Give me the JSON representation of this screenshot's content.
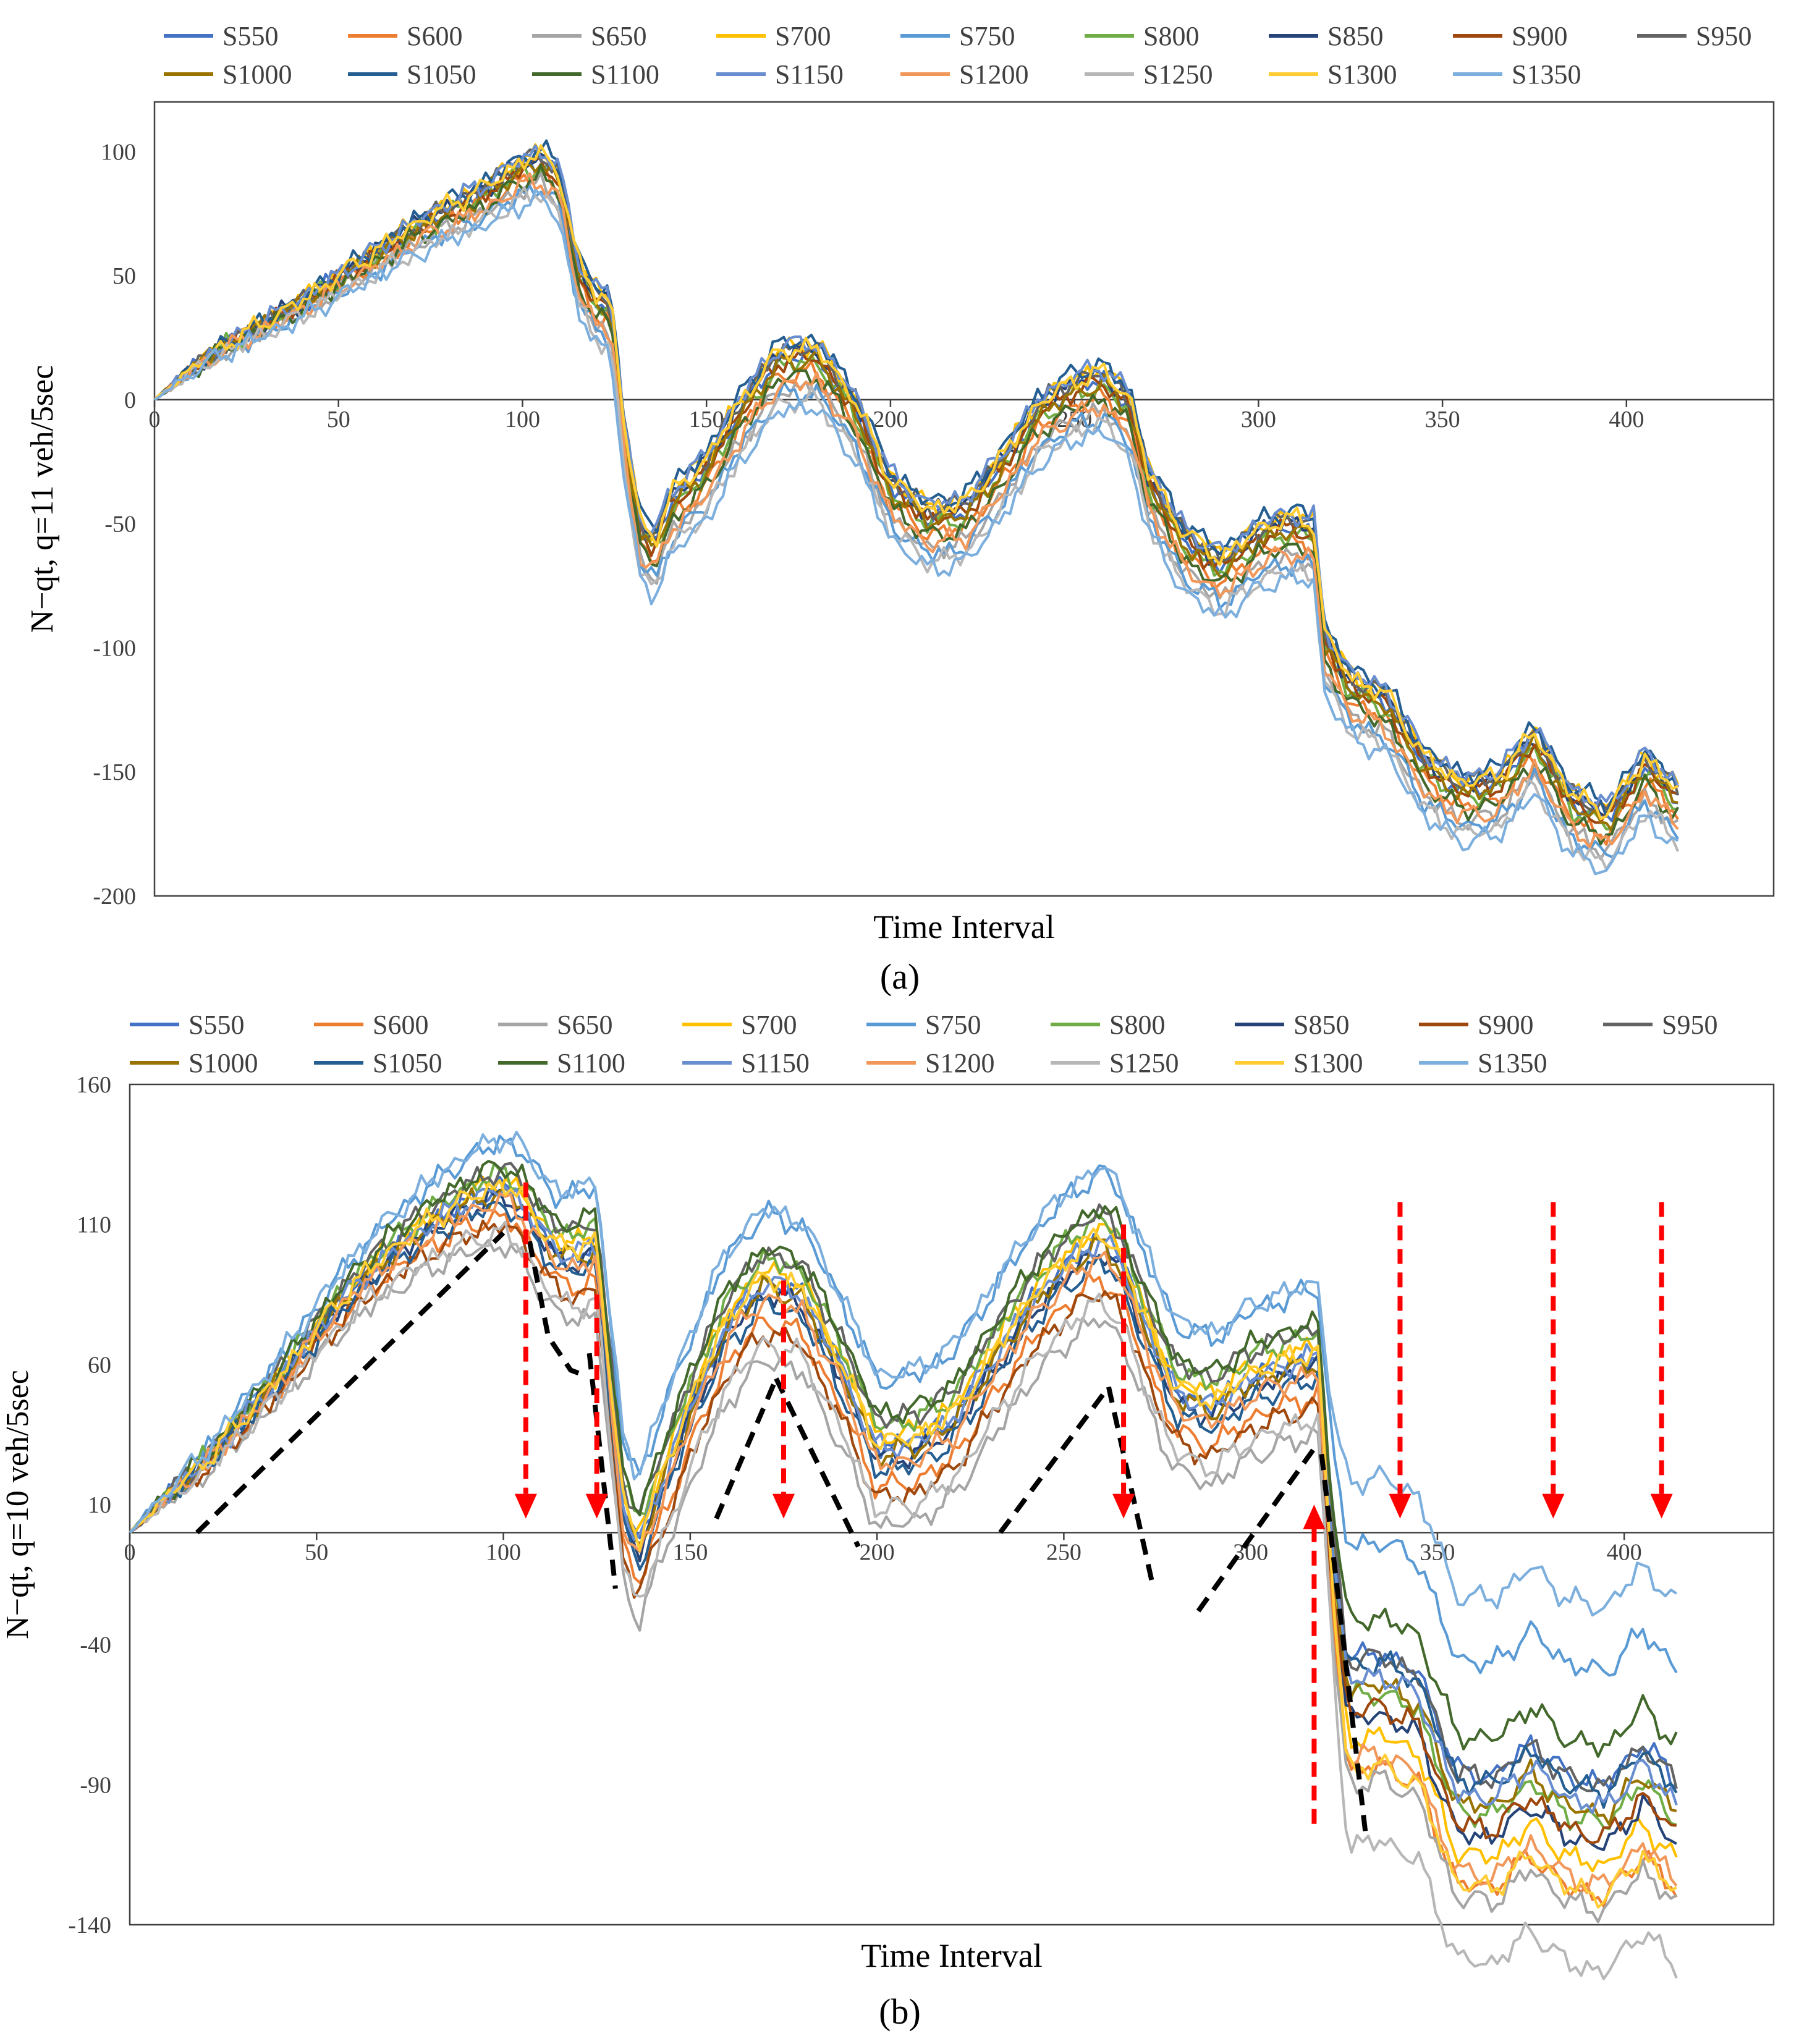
{
  "figure_labels": [
    "(a)",
    "(b)"
  ],
  "chart_data": [
    {
      "type": "line",
      "panel_label": "(a)",
      "title": "",
      "xlabel": "Time Interval",
      "ylabel": "N−qt, q=11 veh/5sec",
      "xlim": [
        0,
        440
      ],
      "ylim": [
        -200,
        120
      ],
      "xticks": [
        0,
        50,
        100,
        150,
        200,
        250,
        300,
        350,
        400
      ],
      "yticks": [
        100,
        50,
        0,
        -50,
        -100,
        -150,
        -200
      ],
      "legend_position": "top",
      "series_names": [
        "S550",
        "S600",
        "S650",
        "S700",
        "S750",
        "S800",
        "S850",
        "S900",
        "S950",
        "S1000",
        "S1050",
        "S1100",
        "S1150",
        "S1200",
        "S1250",
        "S1300",
        "S1350"
      ],
      "colors": [
        "#4472C4",
        "#ED7D31",
        "#A5A5A5",
        "#FFC000",
        "#5B9BD5",
        "#70AD47",
        "#264478",
        "#9E480E",
        "#636363",
        "#997300",
        "#255E91",
        "#43682B",
        "#698ED0",
        "#F1975A",
        "#B7B7B7",
        "#FFCD33",
        "#7CAFDD"
      ],
      "x": [
        0,
        10,
        20,
        30,
        40,
        50,
        60,
        70,
        80,
        90,
        100,
        105,
        110,
        115,
        120,
        124,
        128,
        132,
        136,
        140,
        150,
        160,
        170,
        180,
        190,
        200,
        210,
        220,
        230,
        240,
        250,
        258,
        265,
        270,
        280,
        290,
        300,
        305,
        310,
        315,
        318,
        325,
        335,
        345,
        355,
        365,
        375,
        385,
        395,
        405,
        415
      ],
      "base": [
        0,
        12,
        22,
        30,
        38,
        48,
        57,
        67,
        75,
        82,
        92,
        94,
        88,
        50,
        38,
        35,
        -20,
        -55,
        -62,
        -45,
        -30,
        -5,
        14,
        15,
        -5,
        -38,
        -50,
        -48,
        -30,
        -8,
        2,
        5,
        -5,
        -35,
        -60,
        -70,
        -58,
        -55,
        -54,
        -56,
        -100,
        -118,
        -125,
        -150,
        -160,
        -158,
        -140,
        -165,
        -172,
        -150,
        -165
      ],
      "offsets": [
        3,
        -4,
        -10,
        7,
        -12,
        0,
        5,
        2,
        6,
        1,
        9,
        -5,
        8,
        -8,
        -15,
        6,
        -18
      ],
      "series_note": "Each series = base + offset (veh), offset scaled to 0 at x=0 and full by x=140; values estimated from gridlines."
    },
    {
      "type": "line",
      "panel_label": "(b)",
      "title": "",
      "xlabel": "Time Interval",
      "ylabel": "N−qt, q=10 veh/5sec",
      "xlim": [
        0,
        440
      ],
      "ylim": [
        -140,
        160
      ],
      "xticks": [
        0,
        50,
        100,
        150,
        200,
        250,
        300,
        350,
        400
      ],
      "yticks": [
        160,
        110,
        60,
        10,
        -40,
        -90,
        -140
      ],
      "legend_position": "top",
      "series_names": [
        "S550",
        "S600",
        "S650",
        "S700",
        "S750",
        "S800",
        "S850",
        "S900",
        "S950",
        "S1000",
        "S1050",
        "S1100",
        "S1150",
        "S1200",
        "S1250",
        "S1300",
        "S1350"
      ],
      "colors": [
        "#4472C4",
        "#ED7D31",
        "#A5A5A5",
        "#FFC000",
        "#5B9BD5",
        "#70AD47",
        "#264478",
        "#9E480E",
        "#636363",
        "#997300",
        "#255E91",
        "#43682B",
        "#698ED0",
        "#F1975A",
        "#B7B7B7",
        "#FFCD33",
        "#7CAFDD"
      ],
      "x": [
        0,
        10,
        20,
        30,
        40,
        50,
        60,
        70,
        80,
        90,
        100,
        105,
        110,
        115,
        120,
        125,
        128,
        132,
        136,
        140,
        150,
        160,
        170,
        180,
        190,
        200,
        210,
        220,
        230,
        240,
        250,
        260,
        265,
        270,
        280,
        290,
        300,
        310,
        318,
        322,
        326,
        335,
        345,
        355,
        365,
        375,
        385,
        395,
        405,
        415
      ],
      "base": [
        0,
        13,
        25,
        40,
        55,
        72,
        88,
        100,
        110,
        118,
        123,
        118,
        108,
        100,
        100,
        103,
        60,
        10,
        -5,
        10,
        45,
        75,
        90,
        85,
        60,
        30,
        32,
        40,
        60,
        80,
        95,
        105,
        98,
        80,
        50,
        45,
        55,
        60,
        63,
        5,
        -30,
        -28,
        -35,
        -70,
        -72,
        -60,
        -72,
        -75,
        -60,
        -75
      ],
      "offsets": [
        0,
        -14,
        -28,
        4,
        24,
        8,
        -4,
        -18,
        10,
        -2,
        -8,
        12,
        0,
        -6,
        -22,
        2,
        26
      ],
      "offsets_late": [
        -30,
        -110,
        -120,
        -88,
        50,
        -58,
        -74,
        -68,
        -32,
        -52,
        -36,
        -4,
        -46,
        -102,
        -164,
        -110,
        96
      ],
      "series_note": "Late-period offsets (x>=322) show the post-drop spread; values estimated from gridlines.",
      "dashed_lines": [
        {
          "points": [
            [
              18,
              0
            ],
            [
              100,
              107
            ]
          ]
        },
        {
          "points": [
            [
              107,
              104
            ],
            [
              112,
              70
            ],
            [
              118,
              58
            ],
            [
              122,
              56
            ]
          ]
        },
        {
          "points": [
            [
              123,
              64
            ],
            [
              130,
              -20
            ]
          ]
        },
        {
          "points": [
            [
              157,
              5
            ],
            [
              173,
              55
            ]
          ]
        },
        {
          "points": [
            [
              173,
              55
            ],
            [
              195,
              -5
            ]
          ]
        },
        {
          "points": [
            [
              233,
              0
            ],
            [
              262,
              52
            ]
          ]
        },
        {
          "points": [
            [
              262,
              52
            ],
            [
              274,
              -20
            ]
          ]
        },
        {
          "points": [
            [
              286,
              -28
            ],
            [
              317,
              30
            ]
          ]
        },
        {
          "points": [
            [
              319,
              28
            ],
            [
              331,
              -110
            ]
          ]
        }
      ],
      "arrows_down": [
        {
          "x": 106,
          "from": 125,
          "to": 5
        },
        {
          "x": 125,
          "from": 85,
          "to": 5
        },
        {
          "x": 175,
          "from": 90,
          "to": 5
        },
        {
          "x": 266,
          "from": 110,
          "to": 5
        },
        {
          "x": 340,
          "from": 118,
          "to": 5
        },
        {
          "x": 381,
          "from": 118,
          "to": 5
        },
        {
          "x": 410,
          "from": 118,
          "to": 5
        }
      ],
      "arrows_up": [
        {
          "x": 317,
          "from": -104,
          "to": 10
        }
      ]
    }
  ]
}
